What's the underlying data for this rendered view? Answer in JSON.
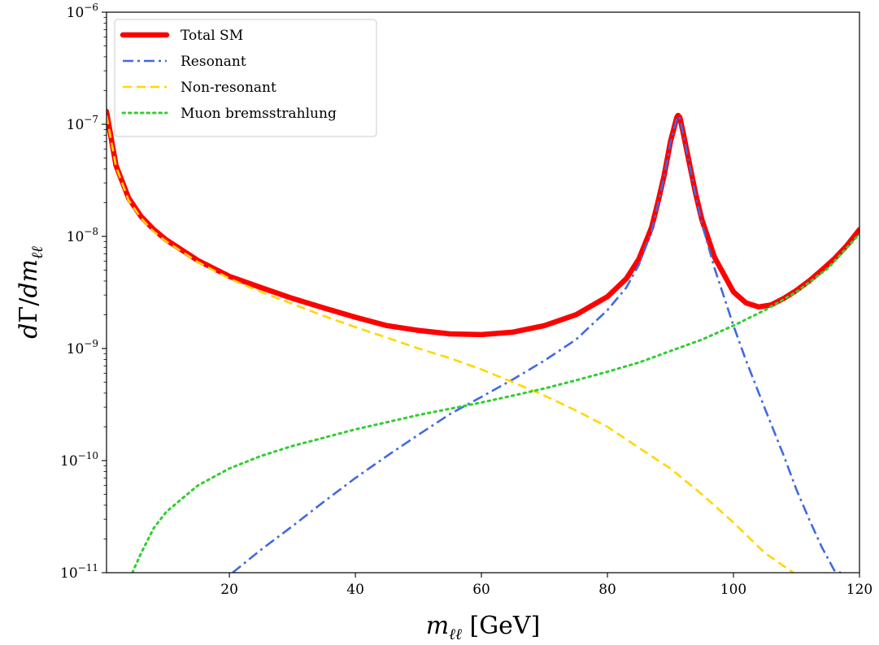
{
  "chart_data": {
    "type": "line",
    "title": "",
    "xlabel": "m_ℓℓ [GeV]",
    "ylabel": "dΓ/dm_ℓℓ",
    "xlim": [
      0.5,
      120
    ],
    "ylim": [
      1e-11,
      1e-06
    ],
    "yscale": "log",
    "grid": false,
    "legend_position": "top-left",
    "x_ticks": [
      20,
      40,
      60,
      80,
      100,
      120
    ],
    "x_tick_labels": [
      "20",
      "40",
      "60",
      "80",
      "100",
      "120"
    ],
    "y_ticks": [
      1e-11,
      1e-10,
      1e-09,
      1e-08,
      1e-07,
      1e-06
    ],
    "y_tick_labels": [
      {
        "base": "10",
        "exp": "−11"
      },
      {
        "base": "10",
        "exp": "−10"
      },
      {
        "base": "10",
        "exp": "−9"
      },
      {
        "base": "10",
        "exp": "−8"
      },
      {
        "base": "10",
        "exp": "−7"
      },
      {
        "base": "10",
        "exp": "−6"
      }
    ],
    "series": [
      {
        "name": "Total SM",
        "color": "#ff0000",
        "style": "solid",
        "x": [
          0.5,
          2,
          4,
          6,
          8,
          10,
          15,
          20,
          25,
          30,
          35,
          40,
          45,
          50,
          55,
          60,
          65,
          70,
          75,
          80,
          83,
          85,
          87,
          88,
          89,
          90,
          91,
          91.2,
          91.5,
          92,
          93,
          94,
          95,
          97,
          100,
          102,
          104,
          106,
          108,
          110,
          112,
          114,
          116,
          118,
          120
        ],
        "values": [
          1.3e-07,
          4.3e-08,
          2.2e-08,
          1.5e-08,
          1.15e-08,
          9.3e-09,
          6.1e-09,
          4.4e-09,
          3.5e-09,
          2.8e-09,
          2.3e-09,
          1.9e-09,
          1.6e-09,
          1.45e-09,
          1.35e-09,
          1.33e-09,
          1.4e-09,
          1.6e-09,
          2e-09,
          2.9e-09,
          4.2e-09,
          6.3e-09,
          1.2e-08,
          2e-08,
          3.5e-08,
          7e-08,
          1.15e-07,
          1.2e-07,
          1.15e-07,
          8.5e-08,
          4.5e-08,
          2.4e-08,
          1.4e-08,
          6.5e-09,
          3.2e-09,
          2.55e-09,
          2.35e-09,
          2.45e-09,
          2.8e-09,
          3.3e-09,
          4e-09,
          5e-09,
          6.3e-09,
          8.3e-09,
          1.15e-08
        ]
      },
      {
        "name": "Resonant",
        "color": "#4169e1",
        "style": "dashdot",
        "x": [
          20.5,
          25,
          30,
          35,
          40,
          45,
          50,
          55,
          60,
          65,
          70,
          75,
          80,
          83,
          85,
          87,
          88,
          89,
          90,
          91,
          91.2,
          91.5,
          92,
          93,
          94,
          95,
          97,
          100,
          102,
          105,
          108,
          110,
          112,
          114,
          116,
          117
        ],
        "values": [
          1e-11,
          1.6e-11,
          2.6e-11,
          4.3e-11,
          7e-11,
          1.1e-10,
          1.7e-10,
          2.6e-10,
          3.7e-10,
          5.3e-10,
          7.8e-10,
          1.2e-09,
          2.2e-09,
          3.5e-09,
          5.6e-09,
          1.1e-08,
          1.9e-08,
          3.4e-08,
          6.8e-08,
          1.12e-07,
          1.18e-07,
          1.12e-07,
          8.3e-08,
          4.4e-08,
          2.3e-08,
          1.3e-08,
          5.2e-09,
          1.6e-09,
          7.8e-10,
          2.9e-10,
          1.1e-10,
          5.5e-11,
          3e-11,
          1.7e-11,
          1.05e-11,
          1e-11
        ]
      },
      {
        "name": "Non-resonant",
        "color": "#ffd700",
        "style": "dashed",
        "x": [
          0.5,
          2,
          4,
          6,
          8,
          10,
          15,
          20,
          25,
          30,
          35,
          40,
          45,
          50,
          55,
          60,
          65,
          70,
          75,
          80,
          85,
          90,
          95,
          100,
          105,
          109.5
        ],
        "values": [
          1.2e-07,
          4.2e-08,
          2.1e-08,
          1.45e-08,
          1.1e-08,
          9e-09,
          5.9e-09,
          4.2e-09,
          3.2e-09,
          2.5e-09,
          1.95e-09,
          1.55e-09,
          1.25e-09,
          1e-09,
          8.2e-10,
          6.5e-10,
          5e-10,
          3.8e-10,
          2.8e-10,
          2e-10,
          1.3e-10,
          8.5e-11,
          5e-11,
          2.8e-11,
          1.5e-11,
          1e-11
        ]
      },
      {
        "name": "Muon bremsstrahlung",
        "color": "#32cd32",
        "style": "dotted",
        "x": [
          4.6,
          6,
          8,
          10,
          15,
          20,
          25,
          30,
          35,
          40,
          45,
          50,
          55,
          60,
          65,
          70,
          75,
          80,
          85,
          90,
          95,
          100,
          105,
          110,
          115,
          120
        ],
        "values": [
          1e-11,
          1.5e-11,
          2.5e-11,
          3.5e-11,
          6e-11,
          8.5e-11,
          1.1e-10,
          1.35e-10,
          1.6e-10,
          1.9e-10,
          2.2e-10,
          2.55e-10,
          2.9e-10,
          3.3e-10,
          3.8e-10,
          4.4e-10,
          5.2e-10,
          6.2e-10,
          7.5e-10,
          9.5e-10,
          1.2e-09,
          1.6e-09,
          2.2e-09,
          3.2e-09,
          5.2e-09,
          1.05e-08
        ]
      }
    ]
  }
}
